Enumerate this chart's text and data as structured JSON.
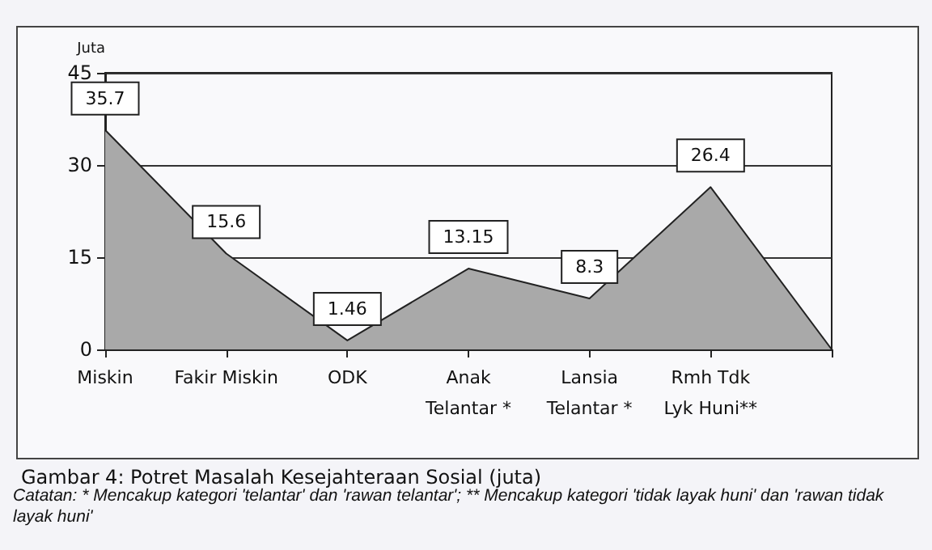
{
  "chart_data": {
    "type": "area",
    "title": "Gambar 4: Potret Masalah Kesejahteraan Sosial (juta)",
    "ylabel": "Juta",
    "annotations": [
      "Catatan: * Mencakup kategori 'telantar' dan 'rawan telantar'; ** Mencakup kategori 'tidak layak huni' dan 'rawan tidak layak huni'"
    ],
    "categories": [
      "Miskin",
      "Fakir Miskin",
      "ODK",
      "Anak\nTelantar *",
      "Lansia\nTelantar *",
      "Rmh Tdk\nLyk Huni**",
      null
    ],
    "series": [
      {
        "color": "#a9a9a9",
        "values": [
          35.7,
          15.6,
          1.46,
          13.15,
          8.3,
          26.4,
          0
        ],
        "value_labels": [
          "35.7",
          "15.6",
          "1.46",
          "13.15",
          "8.3",
          "26.4",
          null
        ]
      }
    ],
    "ylim": [
      0,
      45
    ],
    "yticks": [
      0,
      15,
      30,
      45
    ],
    "grid": "y",
    "marker": "none",
    "line_style": "solid"
  }
}
